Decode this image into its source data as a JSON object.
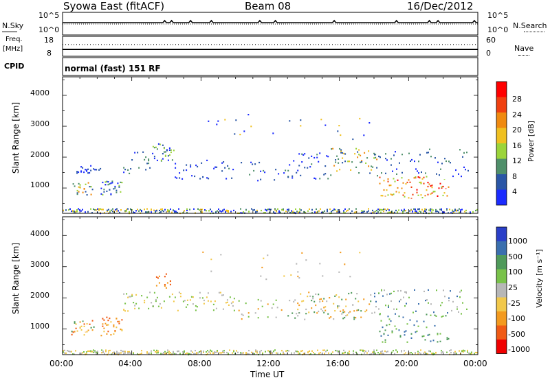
{
  "header": {
    "title": "Syowa East (fitACF)",
    "beam": "Beam 08",
    "date": "16/Dec/2012"
  },
  "side_labels": {
    "nsky": "N.Sky",
    "freq_top": "Freq.",
    "freq_unit": "[MHz]",
    "cpid": "CPID",
    "nsearch": "N.Search",
    "nave": "Nave"
  },
  "cpid_text": "normal (fast) 151 RF",
  "colors": {
    "power": [
      "#1b2bff",
      "#2a56a6",
      "#4f8f6a",
      "#9bd43a",
      "#f0c020",
      "#f08a10",
      "#f04010",
      "#ff0000"
    ],
    "velocity": [
      "#2a3fc8",
      "#3a6fae",
      "#4f9a5a",
      "#79c24a",
      "#b7b7b7",
      "#f2c84a",
      "#f39a1e",
      "#f05a14",
      "#f00000"
    ]
  },
  "chart_data": [
    {
      "type": "line",
      "panel": "N.Sky / N.Search",
      "xlabel": "",
      "ylabel": "N.Sky",
      "y2label": "N.Search",
      "y_ticks": [
        "10^5",
        "10^0"
      ],
      "y2_ticks": [
        "10^5",
        "10^0"
      ]
    },
    {
      "type": "line",
      "panel": "Freq / Nave",
      "ylabel": "Freq. [MHz]",
      "y2label": "Nave",
      "ylim": [
        8,
        18
      ],
      "y_ticks": [
        "18",
        "8"
      ],
      "y2lim": [
        0,
        60
      ],
      "y2_ticks": [
        "60",
        "0"
      ]
    },
    {
      "type": "heatmap",
      "panel": "Power",
      "ylabel": "Slant Range [km]",
      "y_ticks": [
        "1000",
        "2000",
        "3000",
        "4000"
      ],
      "ylim": [
        180,
        4600
      ],
      "xlim_hours": [
        0,
        24
      ],
      "colorbar": {
        "label": "Power [dB]",
        "ticks": [
          "4",
          "8",
          "12",
          "16",
          "20",
          "24",
          "28"
        ],
        "range": [
          0,
          32
        ]
      }
    },
    {
      "type": "heatmap",
      "panel": "Velocity",
      "ylabel": "Slant Range [km]",
      "xlabel": "Time UT",
      "x_ticks": [
        "00:00",
        "04:00",
        "08:00",
        "12:00",
        "16:00",
        "20:00",
        "00:00"
      ],
      "y_ticks": [
        "1000",
        "2000",
        "3000",
        "4000"
      ],
      "ylim": [
        180,
        4600
      ],
      "xlim_hours": [
        0,
        24
      ],
      "colorbar": {
        "label": "Velocity [m s⁻¹]",
        "ticks": [
          "1000",
          "500",
          "100",
          "25",
          "-25",
          "-100",
          "-500",
          "-1000"
        ]
      },
      "clusters": [
        {
          "t": [
            0.5,
            1.6
          ],
          "r": [
            700,
            1400
          ],
          "level": "orange"
        },
        {
          "t": [
            2.2,
            3.4
          ],
          "r": [
            700,
            1400
          ],
          "level": "orange"
        },
        {
          "t": [
            5.6,
            6.2
          ],
          "r": [
            2300,
            2800
          ],
          "level": "orange"
        },
        {
          "t": [
            4.0,
            10.0
          ],
          "r": [
            1800,
            2200
          ],
          "level": "green-gray"
        },
        {
          "t": [
            13.0,
            18.0
          ],
          "r": [
            1400,
            2100
          ],
          "level": "mixed"
        },
        {
          "t": [
            18.5,
            22.0
          ],
          "r": [
            600,
            1500
          ],
          "level": "green"
        }
      ]
    }
  ]
}
